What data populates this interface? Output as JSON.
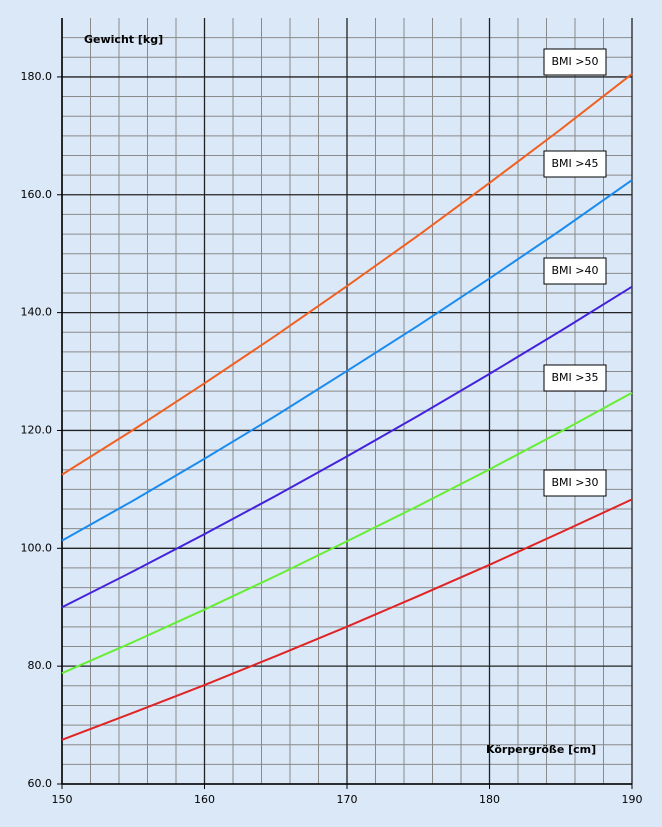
{
  "chart_data": {
    "type": "line",
    "y_label": "Gewicht [kg]",
    "x_label": "Körpergröße [cm]",
    "x": [
      150,
      155,
      160,
      165,
      170,
      175,
      180,
      185,
      190
    ],
    "series": [
      {
        "name": "BMI >30",
        "color": "#e02424",
        "values": [
          67.5,
          72.1,
          76.8,
          81.7,
          86.7,
          91.9,
          97.2,
          102.7,
          108.3
        ]
      },
      {
        "name": "BMI >35",
        "color": "#66ee33",
        "values": [
          78.8,
          84.1,
          89.6,
          95.3,
          101.2,
          107.2,
          113.4,
          119.8,
          126.4
        ]
      },
      {
        "name": "BMI >40",
        "color": "#4422dd",
        "values": [
          90.0,
          96.1,
          102.4,
          108.9,
          115.6,
          122.5,
          129.6,
          136.9,
          144.4
        ]
      },
      {
        "name": "BMI >45",
        "color": "#1a8cf0",
        "values": [
          101.3,
          108.1,
          115.2,
          122.5,
          130.1,
          137.8,
          145.8,
          154.0,
          162.5
        ]
      },
      {
        "name": "BMI >50",
        "color": "#f06020",
        "values": [
          112.5,
          120.1,
          128.0,
          136.1,
          144.5,
          153.1,
          162.0,
          171.1,
          180.5
        ]
      }
    ],
    "xlim": [
      150,
      190
    ],
    "ylim": [
      60,
      190
    ],
    "xticks": [
      150,
      160,
      170,
      180,
      190
    ],
    "yticks": [
      {
        "value": 60,
        "label": "60.0"
      },
      {
        "value": 80,
        "label": "80.0"
      },
      {
        "value": 100,
        "label": "100.0"
      },
      {
        "value": 120,
        "label": "120.0"
      },
      {
        "value": 140,
        "label": "140.0"
      },
      {
        "value": 160,
        "label": "160.0"
      },
      {
        "value": 180,
        "label": "180.0"
      }
    ],
    "minor_xticks": [
      152,
      154,
      156,
      158,
      162,
      164,
      166,
      168,
      172,
      174,
      176,
      178,
      182,
      184,
      186,
      188
    ],
    "minor_yticks": [
      63.33,
      66.67,
      70,
      73.33,
      76.67,
      83.33,
      86.67,
      90,
      93.33,
      96.67,
      103.33,
      106.67,
      110,
      113.33,
      116.67,
      123.33,
      126.67,
      130,
      133.33,
      136.67,
      143.33,
      146.67,
      150,
      153.33,
      156.67,
      163.33,
      166.67,
      170,
      173.33,
      176.67,
      183.33,
      186.67
    ],
    "grid": true
  }
}
